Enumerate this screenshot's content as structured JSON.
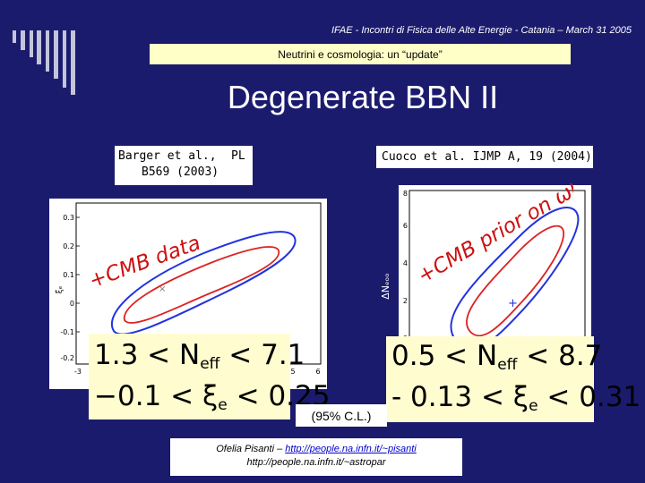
{
  "header": {
    "conference": "IFAE - Incontri di Fisica delle Alte Energie - Catania – March 31 2005",
    "subtitle": "Neutrini e cosmologia: un “update”"
  },
  "title": "Degenerate BBN II",
  "refs": {
    "left_line1": "Barger et al.,",
    "left_line1_journal": "PL",
    "left_line2": "B569 (2003)",
    "right": "Cuoco et al. IJMP A, 19 (2004)"
  },
  "left_plot": {
    "annotation": "+CMB data",
    "y_axis_label": "ξₑ",
    "y_ticks": [
      "0.3",
      "0.2",
      "0.1",
      "0",
      "-0.1",
      "-0.2"
    ],
    "x_ticks": [
      "-3",
      "5",
      "6"
    ],
    "colors": {
      "outer": "#2233dd",
      "inner": "#dd2222"
    }
  },
  "right_plot": {
    "annotation": "+CMB prior on ωB",
    "y_axis_label": "ΔNₑₒₒ",
    "y_ticks": [
      "8",
      "6",
      "4",
      "2",
      "0"
    ],
    "colors": {
      "outer": "#2233dd",
      "inner": "#dd2222"
    }
  },
  "equations": {
    "left": {
      "neff_low": "1.3",
      "neff_high": "7.1",
      "xi_low": "−0.1",
      "xi_high": "0.25"
    },
    "right": {
      "neff_low": "0.5",
      "neff_high": "8.7",
      "xi_low": "- 0.13",
      "xi_high": "0.31"
    },
    "lt": "<",
    "neff_symbol": "N",
    "neff_sub": "eff",
    "xi_symbol": "ξ",
    "xi_sub": "e"
  },
  "confidence_label": "(95% C.L.)",
  "footer": {
    "author_prefix": "Ofelia Pisanti – ",
    "url1": "http://people.na.infn.it/~pisanti",
    "url2": "http://people.na.infn.it/~astropar"
  }
}
